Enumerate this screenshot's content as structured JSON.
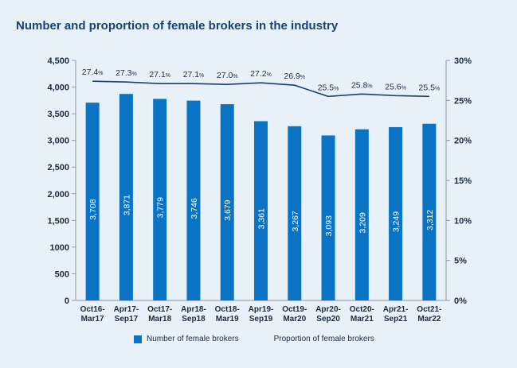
{
  "chart_data": {
    "type": "bar",
    "title": "Number and proportion of female brokers in the industry",
    "categories": [
      [
        "Oct16-",
        "Mar17"
      ],
      [
        "Apr17-",
        "Sep17"
      ],
      [
        "Oct17-",
        "Mar18"
      ],
      [
        "Apr18-",
        "Sep18"
      ],
      [
        "Oct18-",
        "Mar19"
      ],
      [
        "Apr19-",
        "Sep19"
      ],
      [
        "Oct19-",
        "Mar20"
      ],
      [
        "Apr20-",
        "Sep20"
      ],
      [
        "Oct20-",
        "Mar21"
      ],
      [
        "Apr21-",
        "Sep21"
      ],
      [
        "Oct21-",
        "Mar22"
      ]
    ],
    "series": [
      {
        "name": "Number of female brokers",
        "type": "bar",
        "axis": "left",
        "color": "#0a73c4",
        "values": [
          3708,
          3871,
          3779,
          3746,
          3679,
          3361,
          3267,
          3093,
          3209,
          3249,
          3312
        ],
        "labels": [
          "3,708",
          "3,871",
          "3,779",
          "3,746",
          "3,679",
          "3,361",
          "3,267",
          "3,093",
          "3,209",
          "3,249",
          "3,312"
        ]
      },
      {
        "name": "Proportion of female brokers",
        "type": "line",
        "axis": "right",
        "color": "#1c3f72",
        "values": [
          27.4,
          27.3,
          27.1,
          27.1,
          27.0,
          27.2,
          26.9,
          25.5,
          25.8,
          25.6,
          25.5
        ],
        "labels": [
          "27.4",
          "27.3",
          "27.1",
          "27.1",
          "27.0",
          "27.2",
          "26.9",
          "25.5",
          "25.8",
          "25.6",
          "25.5"
        ],
        "label_suffix": "%"
      }
    ],
    "y_left": {
      "range": [
        0,
        4500
      ],
      "ticks": [
        0,
        500,
        1000,
        1500,
        2000,
        2500,
        3000,
        3500,
        4000,
        4500
      ],
      "tick_labels": [
        "0",
        "500",
        "1000",
        "1,500",
        "2,000",
        "2,500",
        "3,000",
        "3,500",
        "4,000",
        "4,500"
      ]
    },
    "y_right": {
      "range": [
        0,
        30
      ],
      "ticks": [
        0,
        5,
        10,
        15,
        20,
        25,
        30
      ],
      "tick_labels": [
        "0%",
        "5%",
        "10%",
        "15%",
        "20%",
        "25%",
        "30%"
      ]
    },
    "grid": false,
    "legend_position": "bottom"
  }
}
